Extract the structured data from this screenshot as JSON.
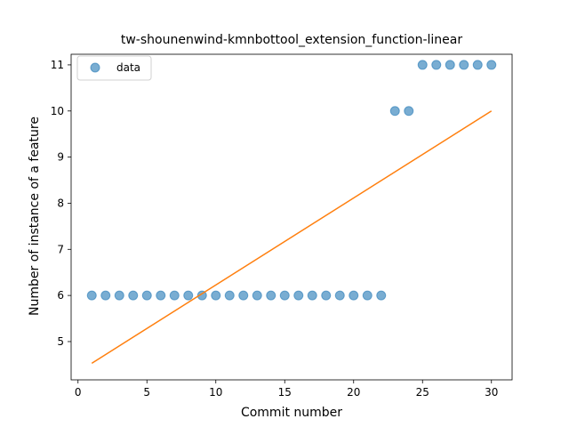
{
  "chart_data": {
    "type": "scatter",
    "title": "tw-shounenwind-kmnbottool_extension_function-linear",
    "xlabel": "Commit number",
    "ylabel": "Number of instance of a feature",
    "xlim": [
      -0.5,
      31.5
    ],
    "ylim": [
      4.17,
      11.23
    ],
    "xticks": [
      0,
      5,
      10,
      15,
      20,
      25,
      30
    ],
    "yticks": [
      5,
      6,
      7,
      8,
      9,
      10,
      11
    ],
    "grid": false,
    "legend_placement": "top-left",
    "series": [
      {
        "name": "data",
        "kind": "scatter",
        "color": "#1f77b4",
        "x": [
          1,
          2,
          3,
          4,
          5,
          6,
          7,
          8,
          9,
          10,
          11,
          12,
          13,
          14,
          15,
          16,
          17,
          18,
          19,
          20,
          21,
          22,
          23,
          24,
          25,
          26,
          27,
          28,
          29,
          30
        ],
        "y": [
          6,
          6,
          6,
          6,
          6,
          6,
          6,
          6,
          6,
          6,
          6,
          6,
          6,
          6,
          6,
          6,
          6,
          6,
          6,
          6,
          6,
          6,
          10,
          10,
          11,
          11,
          11,
          11,
          11,
          11
        ]
      },
      {
        "kind": "line",
        "color": "#ff7f0e",
        "x": [
          1,
          30
        ],
        "y": [
          4.53,
          10.0
        ]
      }
    ]
  }
}
